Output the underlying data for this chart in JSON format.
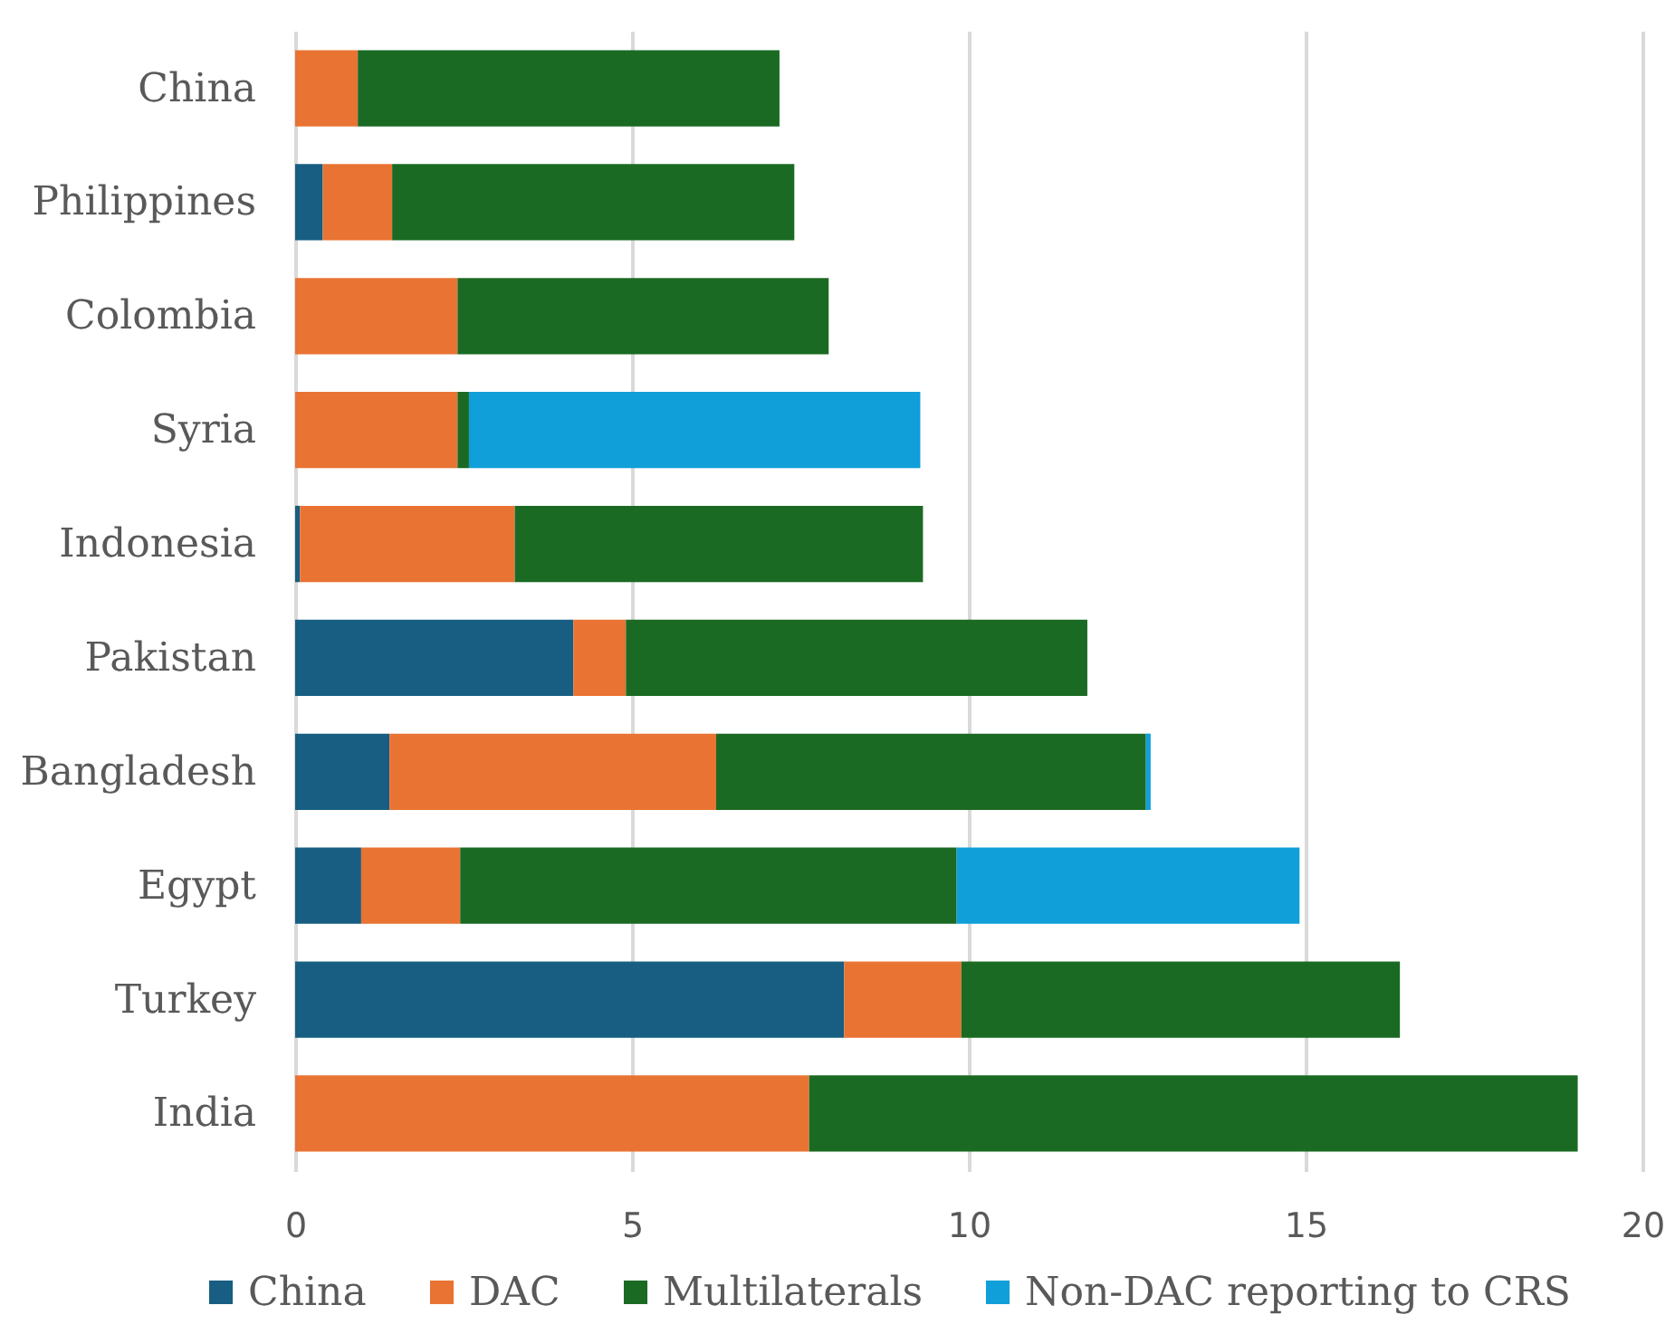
{
  "chart_data": {
    "type": "bar",
    "orientation": "horizontal",
    "stacked": true,
    "categories": [
      "China",
      "Philippines",
      "Colombia",
      "Syria",
      "Indonesia",
      "Pakistan",
      "Bangladesh",
      "Egypt",
      "Turkey",
      "India"
    ],
    "series": [
      {
        "name": "China",
        "color": "#175e82",
        "values": [
          null,
          0.41,
          null,
          null,
          0.07,
          4.13,
          1.4,
          0.98,
          8.15,
          null
        ]
      },
      {
        "name": "DAC",
        "color": "#e97333",
        "values": [
          0.93,
          1.03,
          2.41,
          2.41,
          3.19,
          0.78,
          4.85,
          1.47,
          1.74,
          7.63
        ]
      },
      {
        "name": "Multilaterals",
        "color": "#1b6a23",
        "values": [
          6.26,
          5.97,
          5.51,
          0.17,
          6.06,
          6.85,
          6.38,
          7.37,
          6.51,
          11.41
        ]
      },
      {
        "name": "Non-DAC reporting to CRS",
        "color": "#109fd8",
        "values": [
          null,
          null,
          null,
          6.7,
          null,
          null,
          0.07,
          5.09,
          null,
          null
        ]
      }
    ],
    "xlim": [
      0,
      20
    ],
    "xticks": [
      0,
      5,
      10,
      15,
      20
    ],
    "grid": "x",
    "legend": "bottom"
  }
}
